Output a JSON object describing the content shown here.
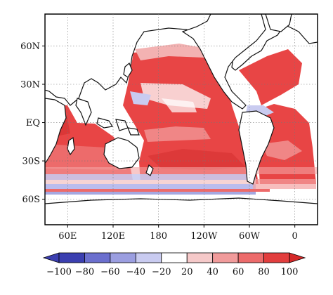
{
  "map": {
    "lat_labels": [
      "60N",
      "30N",
      "EQ",
      "30S",
      "60S"
    ],
    "lon_labels": [
      "60E",
      "120E",
      "180",
      "120W",
      "60W",
      "0"
    ],
    "lat_values": [
      60,
      30,
      0,
      -30,
      -60
    ],
    "lon_values": [
      60,
      120,
      180,
      240,
      300,
      360
    ],
    "lon_range": [
      30,
      390
    ],
    "lat_range": [
      -80,
      85
    ]
  },
  "colorbar": {
    "tick_labels": [
      "−100",
      "−80",
      "−60",
      "−40",
      "−20",
      "20",
      "40",
      "60",
      "80",
      "100"
    ],
    "colors": [
      "#3b3fb0",
      "#6b6fce",
      "#9b9ee0",
      "#c9cbf0",
      "#ffffff",
      "#f5c9c9",
      "#f19b9b",
      "#ec6b6b",
      "#e23e3e"
    ],
    "left_arrow_color": "#3b3fb0",
    "right_arrow_color": "#d42828"
  },
  "colors": {
    "land": "#ffffff",
    "ocean_positive": "#e84545",
    "ocean_light": "#f4a3a3",
    "ocean_negative": "#8b8fd8",
    "coastline": "#111111"
  }
}
